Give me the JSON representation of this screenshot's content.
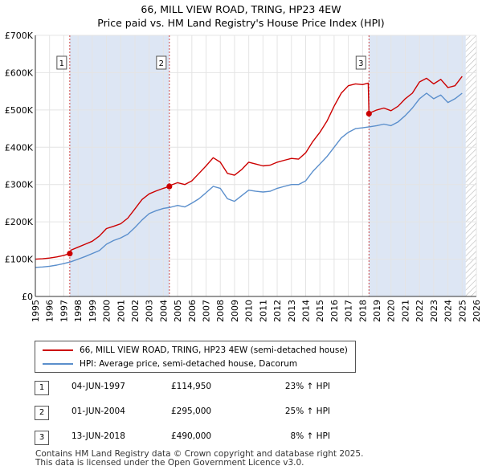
{
  "header": {
    "title_line1": "66, MILL VIEW ROAD, TRING, HP23 4EW",
    "title_line2": "Price paid vs. HM Land Registry's House Price Index (HPI)"
  },
  "colors": {
    "property_line": "#cc0000",
    "hpi_line": "#5b8fcc",
    "shade": "#dde6f4",
    "hatch": "#b8b8b8",
    "grid": "#ffffff",
    "marker_line": "#cc4444"
  },
  "chart_data": {
    "type": "line",
    "title": "66, MILL VIEW ROAD, TRING, HP23 4EW — Price paid vs. HM Land Registry's House Price Index (HPI)",
    "xlabel": "",
    "ylabel": "",
    "xlim": [
      1995,
      2026
    ],
    "ylim": [
      0,
      700000
    ],
    "y_ticks": [
      0,
      100000,
      200000,
      300000,
      400000,
      500000,
      600000,
      700000
    ],
    "y_tick_labels": [
      "£0",
      "£100K",
      "£200K",
      "£300K",
      "£400K",
      "£500K",
      "£600K",
      "£700K"
    ],
    "x_ticks": [
      1995,
      1996,
      1997,
      1998,
      1999,
      2000,
      2001,
      2002,
      2003,
      2004,
      2005,
      2006,
      2007,
      2008,
      2009,
      2010,
      2011,
      2012,
      2013,
      2014,
      2015,
      2016,
      2017,
      2018,
      2019,
      2020,
      2021,
      2022,
      2023,
      2024,
      2025,
      2026
    ],
    "x_tick_labels": [
      "1995",
      "1996",
      "1997",
      "1998",
      "1999",
      "2000",
      "2001",
      "2002",
      "2003",
      "2004",
      "2005",
      "2006",
      "2007",
      "2008",
      "2009",
      "2010",
      "2011",
      "2012",
      "2013",
      "2014",
      "2015",
      "2016",
      "2017",
      "2018",
      "2019",
      "2020",
      "2021",
      "2022",
      "2023",
      "2024",
      "2025",
      "2026"
    ],
    "shaded_ranges": [
      [
        1997.42,
        2004.42
      ],
      [
        2018.45,
        2025.25
      ]
    ],
    "hatched_range": [
      2025.25,
      2026
    ],
    "series": [
      {
        "name": "66, MILL VIEW ROAD, TRING, HP23 4EW (semi-detached house)",
        "x": [
          1995.0,
          1995.5,
          1996.0,
          1996.5,
          1997.0,
          1997.42,
          1997.5,
          1998.0,
          1998.5,
          1999.0,
          1999.5,
          2000.0,
          2000.5,
          2001.0,
          2001.5,
          2002.0,
          2002.5,
          2003.0,
          2003.5,
          2004.0,
          2004.42,
          2004.5,
          2005.0,
          2005.5,
          2006.0,
          2006.5,
          2007.0,
          2007.5,
          2008.0,
          2008.5,
          2009.0,
          2009.5,
          2010.0,
          2010.5,
          2011.0,
          2011.5,
          2012.0,
          2012.5,
          2013.0,
          2013.5,
          2014.0,
          2014.5,
          2015.0,
          2015.5,
          2016.0,
          2016.5,
          2017.0,
          2017.5,
          2018.0,
          2018.4,
          2018.45,
          2018.5,
          2019.0,
          2019.5,
          2020.0,
          2020.5,
          2021.0,
          2021.5,
          2022.0,
          2022.5,
          2023.0,
          2023.5,
          2024.0,
          2024.5,
          2025.0
        ],
        "values": [
          100000,
          101000,
          103000,
          106000,
          110000,
          114950,
          124000,
          132000,
          140000,
          148000,
          162000,
          182000,
          188000,
          195000,
          210000,
          235000,
          260000,
          275000,
          283000,
          290000,
          295000,
          298000,
          305000,
          300000,
          310000,
          330000,
          350000,
          372000,
          360000,
          330000,
          325000,
          340000,
          360000,
          355000,
          350000,
          352000,
          360000,
          365000,
          370000,
          368000,
          385000,
          415000,
          440000,
          470000,
          510000,
          545000,
          565000,
          570000,
          568000,
          572000,
          490000,
          492000,
          500000,
          505000,
          498000,
          510000,
          530000,
          545000,
          575000,
          585000,
          570000,
          582000,
          560000,
          565000,
          590000
        ]
      },
      {
        "name": "HPI: Average price, semi-detached house, Dacorum",
        "x": [
          1995.0,
          1995.5,
          1996.0,
          1996.5,
          1997.0,
          1997.5,
          1998.0,
          1998.5,
          1999.0,
          1999.5,
          2000.0,
          2000.5,
          2001.0,
          2001.5,
          2002.0,
          2002.5,
          2003.0,
          2003.5,
          2004.0,
          2004.5,
          2005.0,
          2005.5,
          2006.0,
          2006.5,
          2007.0,
          2007.5,
          2008.0,
          2008.5,
          2009.0,
          2009.5,
          2010.0,
          2010.5,
          2011.0,
          2011.5,
          2012.0,
          2012.5,
          2013.0,
          2013.5,
          2014.0,
          2014.5,
          2015.0,
          2015.5,
          2016.0,
          2016.5,
          2017.0,
          2017.5,
          2018.0,
          2018.5,
          2019.0,
          2019.5,
          2020.0,
          2020.5,
          2021.0,
          2021.5,
          2022.0,
          2022.5,
          2023.0,
          2023.5,
          2024.0,
          2024.5,
          2025.0
        ],
        "values": [
          78000,
          79000,
          81000,
          84000,
          88000,
          93000,
          100000,
          107000,
          115000,
          123000,
          140000,
          150000,
          157000,
          167000,
          185000,
          205000,
          222000,
          230000,
          236000,
          239000,
          244000,
          240000,
          250000,
          262000,
          278000,
          295000,
          290000,
          262000,
          255000,
          270000,
          285000,
          282000,
          280000,
          282000,
          290000,
          295000,
          300000,
          300000,
          310000,
          335000,
          355000,
          375000,
          400000,
          425000,
          440000,
          450000,
          452000,
          455000,
          458000,
          462000,
          458000,
          468000,
          485000,
          505000,
          530000,
          545000,
          530000,
          540000,
          520000,
          530000,
          545000
        ]
      }
    ],
    "annotations": [
      {
        "label": "1",
        "x": 1997.42,
        "value": 114950
      },
      {
        "label": "2",
        "x": 2004.42,
        "value": 295000
      },
      {
        "label": "3",
        "x": 2018.45,
        "value": 490000
      }
    ]
  },
  "legend": {
    "items": [
      {
        "label": "66, MILL VIEW ROAD, TRING, HP23 4EW (semi-detached house)"
      },
      {
        "label": "HPI: Average price, semi-detached house, Dacorum"
      }
    ]
  },
  "transactions": [
    {
      "num": "1",
      "date": "04-JUN-1997",
      "price": "£114,950",
      "hpi": "23% ↑ HPI"
    },
    {
      "num": "2",
      "date": "01-JUN-2004",
      "price": "£295,000",
      "hpi": "25% ↑ HPI"
    },
    {
      "num": "3",
      "date": "13-JUN-2018",
      "price": "£490,000",
      "hpi": "8% ↑ HPI"
    }
  ],
  "footer": {
    "line1": "Contains HM Land Registry data © Crown copyright and database right 2025.",
    "line2": "This data is licensed under the Open Government Licence v3.0."
  }
}
